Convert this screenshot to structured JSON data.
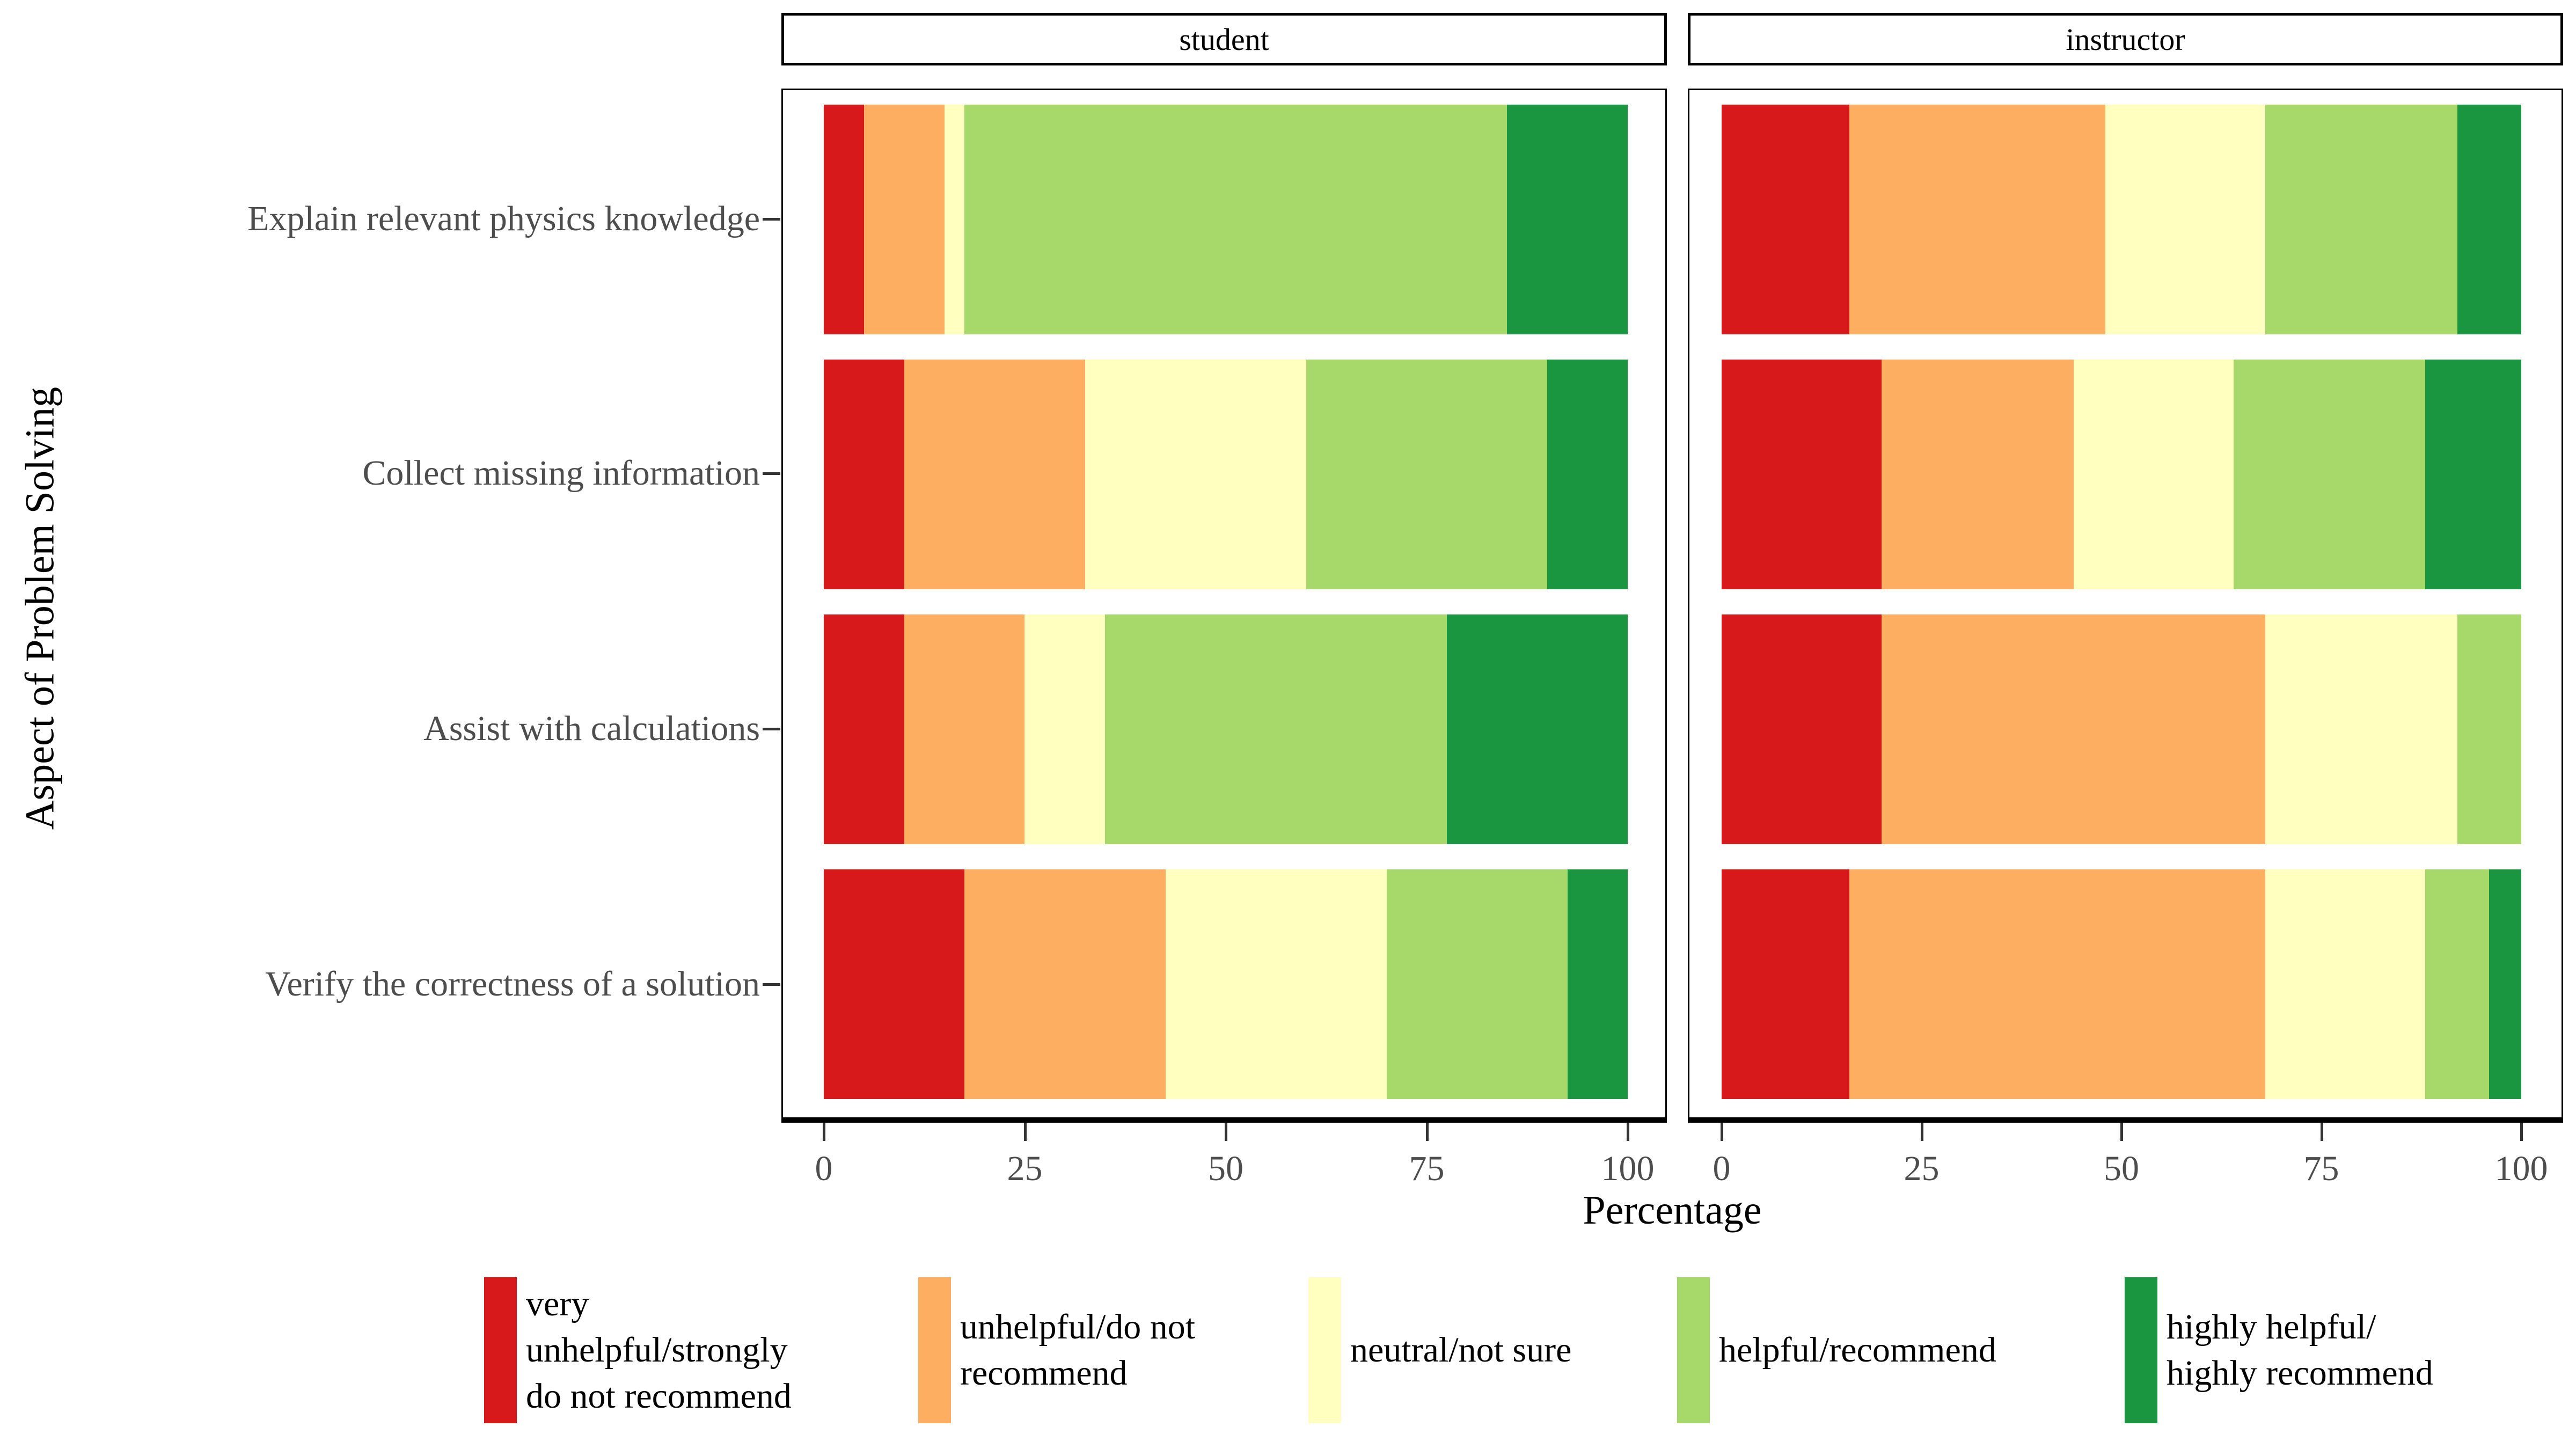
{
  "figure": {
    "x_axis_title": "Percentage",
    "y_axis_title": "Aspect of Problem Solving"
  },
  "chart_data": {
    "type": "bar",
    "orientation": "horizontal",
    "stacked": true,
    "unit": "percent",
    "xlim": [
      0,
      100
    ],
    "x_ticks": [
      "0",
      "25",
      "50",
      "75",
      "100"
    ],
    "grid": false,
    "legend_position": "bottom",
    "categories": [
      "Explain relevant physics knowledge",
      "Collect missing information",
      "Assist with calculations",
      "Verify the correctness of a solution"
    ],
    "levels": [
      {
        "label": "very\nunhelpful/strongly\ndo not recommend",
        "color": "#D7191C"
      },
      {
        "label": "unhelpful/do not\nrecommend",
        "color": "#FDAE61"
      },
      {
        "label": "neutral/not sure",
        "color": "#FFFFBF"
      },
      {
        "label": "helpful/recommend",
        "color": "#A6D96A"
      },
      {
        "label": "highly helpful/\nhighly recommend",
        "color": "#1A9641"
      }
    ],
    "facets": [
      {
        "label": "student",
        "rows": [
          [
            5,
            10,
            2.5,
            67.5,
            15
          ],
          [
            10,
            22.5,
            27.5,
            30,
            10
          ],
          [
            10,
            15,
            10,
            42.5,
            22.5
          ],
          [
            17.5,
            25,
            27.5,
            22.5,
            7.5
          ]
        ]
      },
      {
        "label": "instructor",
        "rows": [
          [
            16,
            32,
            20,
            24,
            8
          ],
          [
            20,
            24,
            20,
            24,
            12
          ],
          [
            20,
            48,
            24,
            8,
            0
          ],
          [
            16,
            52,
            20,
            8,
            4
          ]
        ]
      }
    ]
  }
}
